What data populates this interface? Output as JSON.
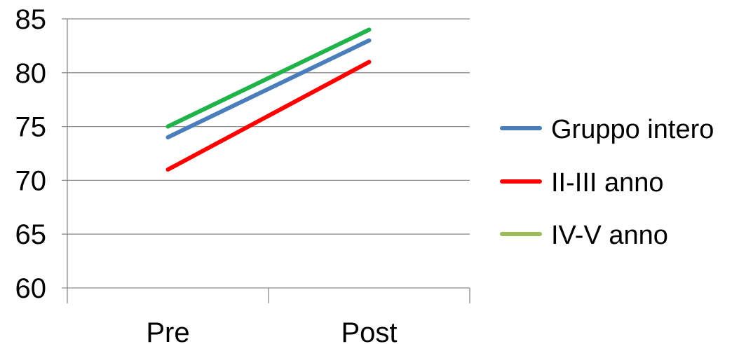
{
  "chart_data": {
    "type": "line",
    "categories": [
      "Pre",
      "Post"
    ],
    "series": [
      {
        "name": "Gruppo intero",
        "color": "#4a7ebb",
        "values": [
          74,
          83
        ]
      },
      {
        "name": "II-III anno",
        "color": "#ff0000",
        "values": [
          71,
          81
        ]
      },
      {
        "name": "IV-V anno",
        "color": "#1fb34a",
        "values": [
          75,
          84
        ]
      }
    ],
    "legend_swatch_colors": [
      "#4a7ebb",
      "#ff0000",
      "#9bbb59"
    ],
    "ylim": [
      60,
      85
    ],
    "yticks": [
      60,
      65,
      70,
      75,
      80,
      85
    ],
    "grid": true,
    "legend_position": "right",
    "title": "",
    "xlabel": "",
    "ylabel": ""
  }
}
